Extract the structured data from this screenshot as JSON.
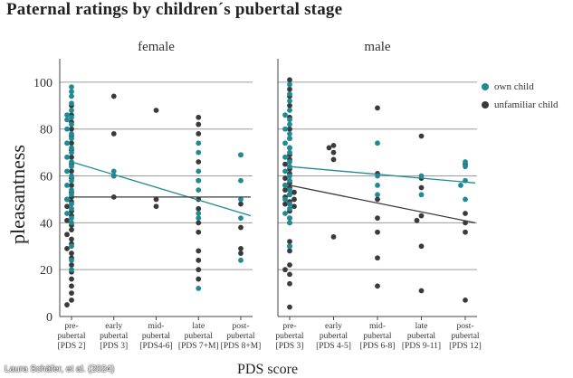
{
  "title": "Paternal ratings by children´s pubertal stage",
  "credit": "Laura Schäfer, et al. (2024)",
  "colors": {
    "own": "#1f8a96",
    "unfamiliar": "#3a3a3a",
    "grid": "#9c9c9c"
  },
  "legend": {
    "own": "own  child",
    "unfamiliar": "unfamiliar child"
  },
  "chart_data": {
    "type": "scatter",
    "title": "Paternal ratings by children´s pubertal stage",
    "xlabel": "PDS score",
    "ylabel": "pleasantness",
    "ylim": [
      0,
      110
    ],
    "yticks": [
      0,
      20,
      40,
      60,
      80,
      100
    ],
    "grid": true,
    "legend_position": "right",
    "panels": [
      {
        "name": "female",
        "categories": [
          {
            "line1": "pre-",
            "line2": "pubertal",
            "line3": "[PDS 2]"
          },
          {
            "line1": "early",
            "line2": "pubertal",
            "line3": "[PDS 3]"
          },
          {
            "line1": "mid-",
            "line2": "pubertal",
            "line3": "[PDS4-6]"
          },
          {
            "line1": "late",
            "line2": "pubertal",
            "line3": "[PDS 7+M]"
          },
          {
            "line1": "post-",
            "line2": "pubertal",
            "line3": "[PDS 8+M]"
          }
        ],
        "series": [
          {
            "name": "own child",
            "points": [
              [
                0,
                98
              ],
              [
                0,
                96
              ],
              [
                0,
                94
              ],
              [
                0,
                91
              ],
              [
                0,
                88
              ],
              [
                0,
                86
              ],
              [
                0,
                85
              ],
              [
                0,
                84
              ],
              [
                0,
                82
              ],
              [
                0,
                80
              ],
              [
                0,
                78
              ],
              [
                0,
                76
              ],
              [
                0,
                74
              ],
              [
                0,
                72
              ],
              [
                0,
                70
              ],
              [
                0,
                68
              ],
              [
                0,
                66
              ],
              [
                0,
                64
              ],
              [
                0,
                62
              ],
              [
                0,
                60
              ],
              [
                0,
                58
              ],
              [
                0,
                56
              ],
              [
                0,
                54
              ],
              [
                0,
                52
              ],
              [
                0,
                50
              ],
              [
                0,
                48
              ],
              [
                0,
                46
              ],
              [
                0,
                44
              ],
              [
                0,
                42
              ],
              [
                0,
                40
              ],
              [
                0,
                30
              ],
              [
                0,
                24
              ],
              [
                0,
                20
              ],
              [
                1,
                62
              ],
              [
                1,
                60
              ],
              [
                3,
                74
              ],
              [
                3,
                70
              ],
              [
                3,
                62
              ],
              [
                3,
                58
              ],
              [
                3,
                54
              ],
              [
                3,
                44
              ],
              [
                3,
                42
              ],
              [
                3,
                12
              ],
              [
                4,
                69
              ],
              [
                4,
                58
              ],
              [
                4,
                50
              ],
              [
                4,
                42
              ],
              [
                4,
                24
              ]
            ]
          },
          {
            "name": "unfamiliar child",
            "points": [
              [
                0,
                90
              ],
              [
                0,
                86
              ],
              [
                0,
                83
              ],
              [
                0,
                80
              ],
              [
                0,
                77
              ],
              [
                0,
                74
              ],
              [
                0,
                71
              ],
              [
                0,
                68
              ],
              [
                0,
                65
              ],
              [
                0,
                62
              ],
              [
                0,
                59
              ],
              [
                0,
                56
              ],
              [
                0,
                53
              ],
              [
                0,
                51
              ],
              [
                0,
                50
              ],
              [
                0,
                49
              ],
              [
                0,
                47
              ],
              [
                0,
                45
              ],
              [
                0,
                43
              ],
              [
                0,
                41
              ],
              [
                0,
                39
              ],
              [
                0,
                37
              ],
              [
                0,
                35
              ],
              [
                0,
                33
              ],
              [
                0,
                31
              ],
              [
                0,
                29
              ],
              [
                0,
                27
              ],
              [
                0,
                25
              ],
              [
                0,
                22
              ],
              [
                0,
                19
              ],
              [
                0,
                16
              ],
              [
                0,
                13
              ],
              [
                0,
                10
              ],
              [
                0,
                7
              ],
              [
                0,
                5
              ],
              [
                1,
                94
              ],
              [
                1,
                78
              ],
              [
                1,
                60
              ],
              [
                1,
                51
              ],
              [
                2,
                88
              ],
              [
                2,
                50
              ],
              [
                2,
                47
              ],
              [
                3,
                85
              ],
              [
                3,
                82
              ],
              [
                3,
                78
              ],
              [
                3,
                66
              ],
              [
                3,
                58
              ],
              [
                3,
                50
              ],
              [
                3,
                46
              ],
              [
                3,
                40
              ],
              [
                3,
                36
              ],
              [
                3,
                28
              ],
              [
                3,
                24
              ],
              [
                3,
                20
              ],
              [
                3,
                16
              ],
              [
                4,
                69
              ],
              [
                4,
                48
              ],
              [
                4,
                38
              ],
              [
                4,
                29
              ],
              [
                4,
                27
              ]
            ]
          }
        ],
        "trend": [
          {
            "series": "own child",
            "start": 66,
            "end": 43
          },
          {
            "series": "unfamiliar child",
            "start": 51,
            "end": 51
          }
        ]
      },
      {
        "name": "male",
        "categories": [
          {
            "line1": "pre-",
            "line2": "pubertal",
            "line3": "[PDS 3]"
          },
          {
            "line1": "early",
            "line2": "pubertal",
            "line3": "[PDS 4-5]"
          },
          {
            "line1": "mid-",
            "line2": "pubertal",
            "line3": "[PDS 6-8]"
          },
          {
            "line1": "late",
            "line2": "pubertal",
            "line3": "[PDS 9-11]"
          },
          {
            "line1": "post-",
            "line2": "pubertal",
            "line3": "[PDS 12]"
          }
        ],
        "series": [
          {
            "name": "own child",
            "points": [
              [
                0,
                99
              ],
              [
                0,
                95
              ],
              [
                0,
                92
              ],
              [
                0,
                88
              ],
              [
                0,
                86
              ],
              [
                0,
                84
              ],
              [
                0,
                82
              ],
              [
                0,
                80
              ],
              [
                0,
                78
              ],
              [
                0,
                76
              ],
              [
                0,
                74
              ],
              [
                0,
                72
              ],
              [
                0,
                70
              ],
              [
                0,
                68
              ],
              [
                0,
                66
              ],
              [
                0,
                64
              ],
              [
                0,
                62
              ],
              [
                0,
                60
              ],
              [
                0,
                58
              ],
              [
                0,
                56
              ],
              [
                0,
                54
              ],
              [
                0,
                52
              ],
              [
                0,
                50
              ],
              [
                0,
                48
              ],
              [
                0,
                46
              ],
              [
                0,
                44
              ],
              [
                0,
                42
              ],
              [
                0,
                40
              ],
              [
                0,
                30
              ],
              [
                2,
                74
              ],
              [
                2,
                60
              ],
              [
                2,
                56
              ],
              [
                2,
                52
              ],
              [
                3,
                60
              ],
              [
                3,
                52
              ],
              [
                4,
                66
              ],
              [
                4,
                64
              ],
              [
                4,
                58
              ],
              [
                4,
                56
              ],
              [
                4,
                50
              ]
            ]
          },
          {
            "name": "unfamiliar child",
            "points": [
              [
                0,
                101
              ],
              [
                0,
                97
              ],
              [
                0,
                94
              ],
              [
                0,
                90
              ],
              [
                0,
                85
              ],
              [
                0,
                80
              ],
              [
                0,
                76
              ],
              [
                0,
                72
              ],
              [
                0,
                69
              ],
              [
                0,
                67
              ],
              [
                0,
                65
              ],
              [
                0,
                63
              ],
              [
                0,
                61
              ],
              [
                0,
                59
              ],
              [
                0,
                57
              ],
              [
                0,
                56
              ],
              [
                0,
                55
              ],
              [
                0,
                54
              ],
              [
                0,
                53
              ],
              [
                0,
                52
              ],
              [
                0,
                51
              ],
              [
                0,
                50
              ],
              [
                0,
                49
              ],
              [
                0,
                48
              ],
              [
                0,
                47
              ],
              [
                0,
                45
              ],
              [
                0,
                42
              ],
              [
                0,
                40
              ],
              [
                0,
                32
              ],
              [
                0,
                30
              ],
              [
                0,
                28
              ],
              [
                0,
                22
              ],
              [
                0,
                20
              ],
              [
                0,
                18
              ],
              [
                0,
                14
              ],
              [
                0,
                4
              ],
              [
                1,
                73
              ],
              [
                1,
                72
              ],
              [
                1,
                70
              ],
              [
                1,
                67
              ],
              [
                1,
                34
              ],
              [
                2,
                89
              ],
              [
                2,
                61
              ],
              [
                2,
                50
              ],
              [
                2,
                42
              ],
              [
                2,
                36
              ],
              [
                2,
                25
              ],
              [
                2,
                13
              ],
              [
                3,
                77
              ],
              [
                3,
                59
              ],
              [
                3,
                55
              ],
              [
                3,
                43
              ],
              [
                3,
                41
              ],
              [
                3,
                30
              ],
              [
                3,
                11
              ],
              [
                4,
                65
              ],
              [
                4,
                44
              ],
              [
                4,
                40
              ],
              [
                4,
                36
              ],
              [
                4,
                7
              ]
            ]
          }
        ],
        "trend": [
          {
            "series": "own child",
            "start": 64,
            "end": 57
          },
          {
            "series": "unfamiliar child",
            "start": 56,
            "end": 40
          }
        ]
      }
    ]
  }
}
